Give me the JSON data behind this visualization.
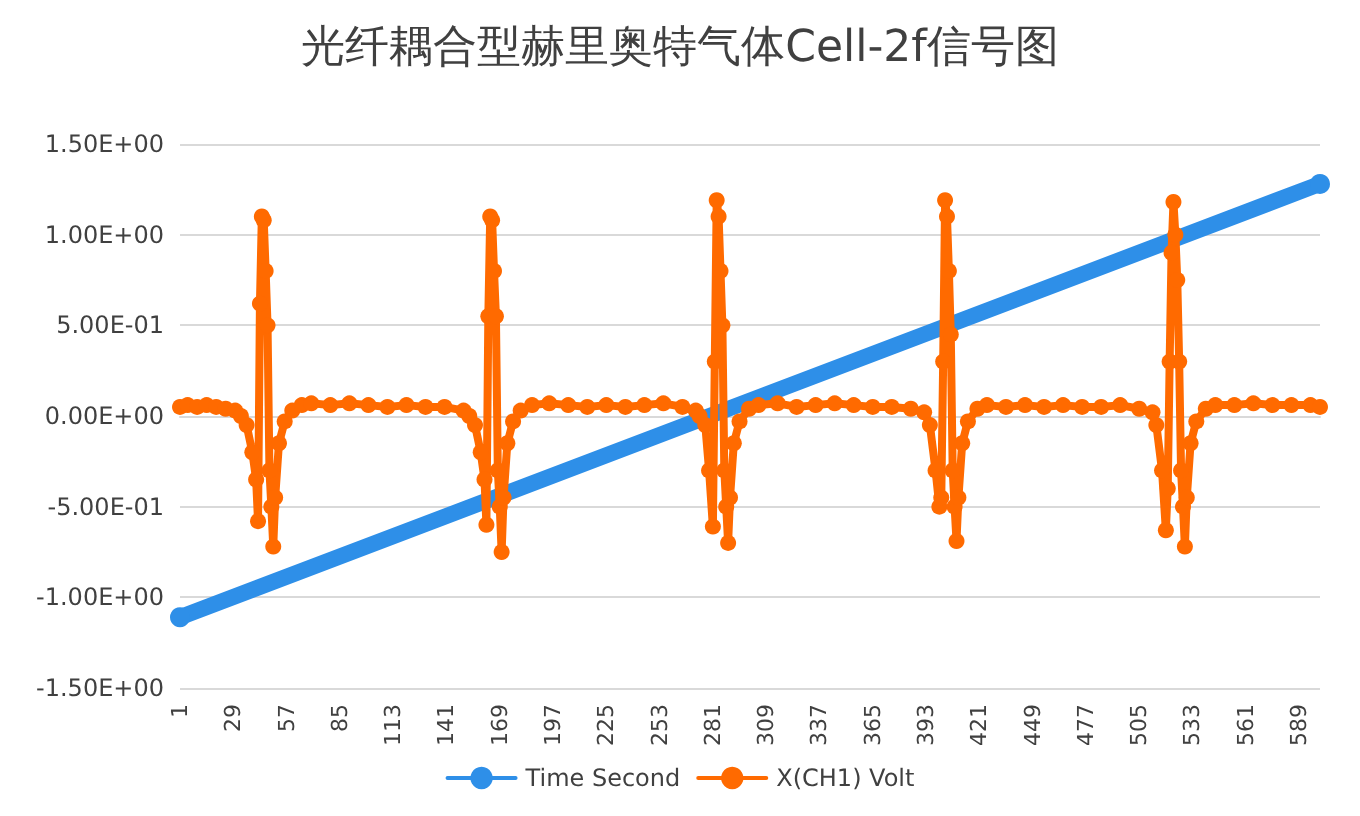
{
  "chart_data": {
    "type": "line",
    "title": "光纤耦合型赫里奥特气体Cell-2f信号图",
    "xlim": [
      1,
      600
    ],
    "xticks": [
      1,
      29,
      57,
      85,
      113,
      141,
      169,
      197,
      225,
      253,
      281,
      309,
      337,
      365,
      393,
      421,
      449,
      477,
      505,
      533,
      561,
      589
    ],
    "ylim": [
      -1.5,
      1.5
    ],
    "yticks": [
      {
        "value": -1.5,
        "label": "-1.50E+00"
      },
      {
        "value": -1,
        "label": "-1.00E+00"
      },
      {
        "value": -0.5,
        "label": "-5.00E-01"
      },
      {
        "value": 0,
        "label": "0.00E+00"
      },
      {
        "value": 0.5,
        "label": "5.00E-01"
      },
      {
        "value": 1,
        "label": "1.00E+00"
      },
      {
        "value": 1.5,
        "label": "1.50E+00"
      }
    ],
    "grid": "y",
    "legend": "bottom",
    "marker": "circle",
    "line_style": "solid",
    "series": [
      {
        "name": "Time Second",
        "color": "#2e8fe8",
        "x": [
          1,
          600
        ],
        "values": [
          -1.11,
          1.28
        ]
      },
      {
        "name": "X(CH1) Volt",
        "color": "#ff6a00",
        "x": [
          1,
          5,
          10,
          15,
          20,
          25,
          30,
          33,
          36,
          39,
          41,
          42,
          43,
          44,
          45,
          46,
          47,
          48,
          49,
          50,
          51,
          53,
          56,
          60,
          65,
          70,
          80,
          90,
          100,
          110,
          120,
          130,
          140,
          150,
          153,
          156,
          159,
          161,
          162,
          163,
          164,
          165,
          166,
          167,
          168,
          169,
          170,
          171,
          173,
          176,
          180,
          186,
          195,
          205,
          215,
          225,
          235,
          245,
          255,
          265,
          272,
          274,
          277,
          279,
          281,
          282,
          283,
          284,
          285,
          286,
          287,
          288,
          289,
          290,
          292,
          295,
          300,
          305,
          315,
          325,
          335,
          345,
          355,
          365,
          375,
          385,
          392,
          395,
          398,
          400,
          401,
          402,
          403,
          404,
          405,
          406,
          407,
          408,
          409,
          410,
          412,
          415,
          420,
          425,
          435,
          445,
          455,
          465,
          475,
          485,
          495,
          505,
          512,
          514,
          517,
          519,
          520,
          521,
          522,
          523,
          524,
          525,
          526,
          527,
          528,
          529,
          530,
          532,
          535,
          540,
          545,
          555,
          565,
          575,
          585,
          595,
          600
        ],
        "values": [
          0.05,
          0.06,
          0.05,
          0.06,
          0.05,
          0.04,
          0.03,
          0.0,
          -0.05,
          -0.2,
          -0.35,
          -0.58,
          0.62,
          1.1,
          1.08,
          0.8,
          0.5,
          -0.3,
          -0.5,
          -0.72,
          -0.45,
          -0.15,
          -0.03,
          0.03,
          0.06,
          0.07,
          0.06,
          0.07,
          0.06,
          0.05,
          0.06,
          0.05,
          0.05,
          0.03,
          0.0,
          -0.05,
          -0.2,
          -0.35,
          -0.6,
          0.55,
          1.1,
          1.08,
          0.8,
          0.55,
          -0.3,
          -0.5,
          -0.75,
          -0.45,
          -0.15,
          -0.03,
          0.03,
          0.06,
          0.07,
          0.06,
          0.05,
          0.06,
          0.05,
          0.06,
          0.07,
          0.05,
          0.03,
          0.0,
          -0.05,
          -0.3,
          -0.61,
          0.3,
          1.19,
          1.1,
          0.8,
          0.5,
          -0.3,
          -0.5,
          -0.7,
          -0.45,
          -0.15,
          -0.03,
          0.04,
          0.06,
          0.07,
          0.05,
          0.06,
          0.07,
          0.06,
          0.05,
          0.05,
          0.04,
          0.02,
          -0.05,
          -0.3,
          -0.5,
          -0.45,
          0.3,
          1.19,
          1.1,
          0.8,
          0.45,
          -0.3,
          -0.5,
          -0.69,
          -0.45,
          -0.15,
          -0.03,
          0.04,
          0.06,
          0.05,
          0.06,
          0.05,
          0.06,
          0.05,
          0.05,
          0.06,
          0.04,
          0.02,
          -0.05,
          -0.3,
          -0.63,
          -0.4,
          0.3,
          0.9,
          1.18,
          1.0,
          0.75,
          0.3,
          -0.3,
          -0.5,
          -0.72,
          -0.45,
          -0.15,
          -0.03,
          0.04,
          0.06,
          0.06,
          0.07,
          0.06,
          0.06,
          0.06,
          0.05
        ]
      }
    ]
  }
}
